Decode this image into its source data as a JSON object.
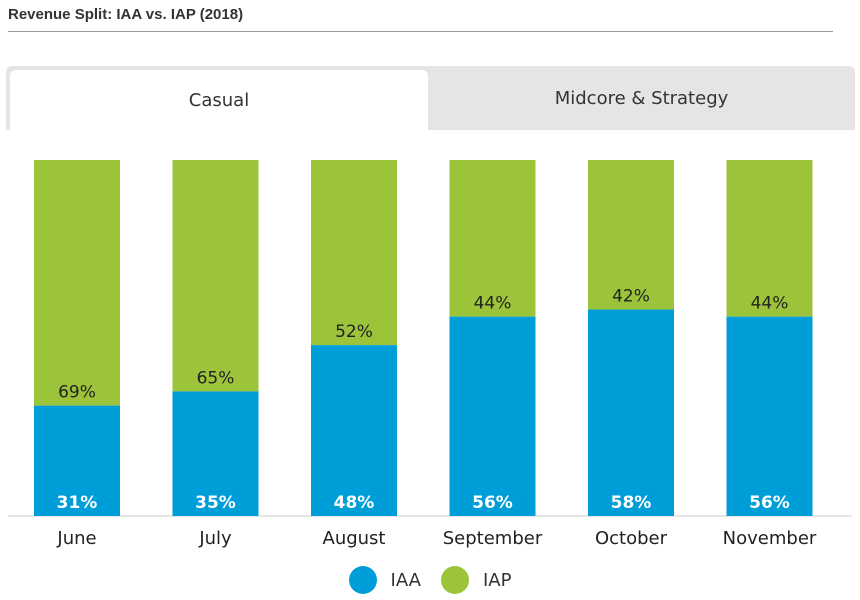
{
  "header": {
    "title": "Revenue Split: IAA vs. IAP (2018)"
  },
  "tabs": [
    {
      "label": "Casual",
      "active": true
    },
    {
      "label": "Midcore & Strategy",
      "active": false
    }
  ],
  "colors": {
    "iaa": "#009ed8",
    "iap": "#9bc43a"
  },
  "chart_data": {
    "type": "bar",
    "stacked": true,
    "percent": true,
    "categories": [
      "June",
      "July",
      "August",
      "September",
      "October",
      "November"
    ],
    "series": [
      {
        "name": "IAA",
        "values": [
          31,
          35,
          48,
          56,
          58,
          56
        ]
      },
      {
        "name": "IAP",
        "values": [
          69,
          65,
          52,
          44,
          42,
          44
        ]
      }
    ],
    "ylim": [
      0,
      100
    ],
    "grid": false,
    "legend": "bottom-center"
  }
}
